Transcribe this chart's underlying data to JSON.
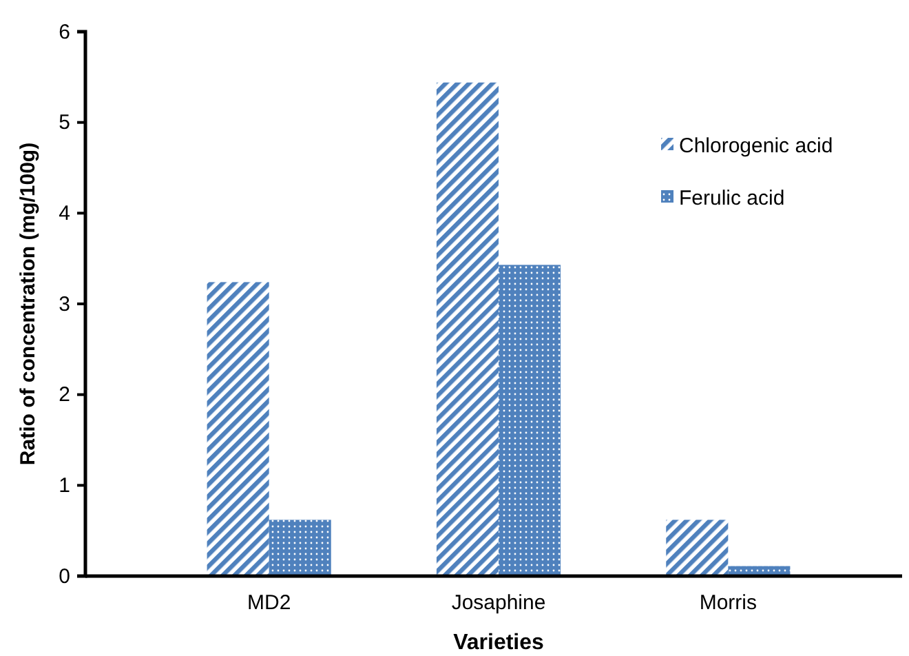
{
  "chart_data": {
    "type": "bar",
    "xlabel": "Varieties",
    "ylabel": "Ratio of concentration (mg/100g)",
    "categories": [
      "MD2",
      "Josaphine",
      "Morris"
    ],
    "series": [
      {
        "name": "Chlorogenic acid",
        "color": "#4f81bd",
        "values": [
          3.24,
          5.44,
          0.62
        ]
      },
      {
        "name": "Ferulic acid",
        "color": "#4f81bd",
        "values": [
          0.62,
          3.43,
          0.11
        ]
      }
    ],
    "ylim": [
      0,
      6
    ],
    "yticks": [
      0,
      1,
      2,
      3,
      4,
      5,
      6
    ],
    "grid": false,
    "legend": "right"
  }
}
